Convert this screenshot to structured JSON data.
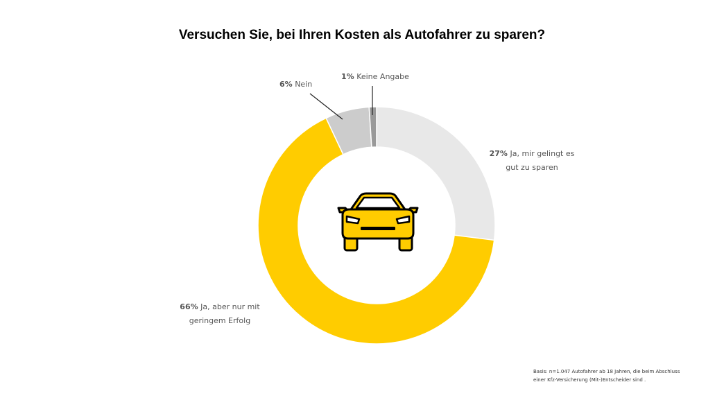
{
  "title": "Versuchen Sie, bei Ihren Kosten als Autofahrer zu sparen?",
  "chart_data": {
    "type": "pie",
    "variant": "donut",
    "title": "Versuchen Sie, bei Ihren Kosten als Autofahrer zu sparen?",
    "slices": [
      {
        "label": "Ja, mir gelingt es gut zu sparen",
        "value": 27,
        "value_label": "27%",
        "color": "#e8e8e8"
      },
      {
        "label": "Ja, aber nur mit geringem Erfolg",
        "value": 66,
        "value_label": "66%",
        "color": "#ffcc00"
      },
      {
        "label": "Nein",
        "value": 6,
        "value_label": "6%",
        "color": "#cccccc"
      },
      {
        "label": "Keine Angabe",
        "value": 1,
        "value_label": "1%",
        "color": "#999999"
      }
    ],
    "labels": {
      "s27": {
        "pct": "27%",
        "line1": "Ja, mir gelingt es",
        "line2": "gut zu sparen"
      },
      "s66": {
        "pct": "66%",
        "line1": "Ja, aber nur mit",
        "line2": "geringem Erfolg"
      },
      "s6": {
        "pct": "6%",
        "line1": "Nein"
      },
      "s1": {
        "pct": "1%",
        "line1": "Keine Angabe"
      }
    },
    "center_icon": "car-icon"
  },
  "footnote": {
    "line1": "Basis: n=1.047 Autofahrer ab 18 Jahren, die beim Abschluss",
    "line2": "einer Kfz-Versicherung (Mit-)Entscheider sind ."
  }
}
